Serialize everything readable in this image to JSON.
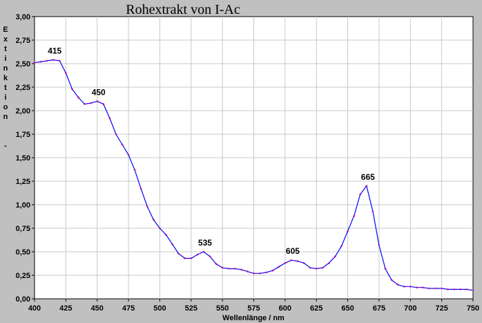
{
  "chart_data": {
    "type": "line",
    "title": "Rohextrakt von I-Ac",
    "xlabel": "Wellenlänge / nm",
    "ylabel": "Extinktion  -",
    "xlim": [
      400,
      750
    ],
    "ylim": [
      0,
      3
    ],
    "x_ticks": [
      "400",
      "425",
      "450",
      "475",
      "500",
      "525",
      "550",
      "575",
      "600",
      "625",
      "650",
      "675",
      "700",
      "725",
      "750"
    ],
    "y_ticks": [
      "0,00",
      "0,25",
      "0,50",
      "0,75",
      "1,00",
      "1,25",
      "1,50",
      "1,75",
      "2,00",
      "2,25",
      "2,50",
      "2,75",
      "3,00"
    ],
    "grid": true,
    "line_color": "#0000ff",
    "marker_color": "#c00080",
    "series": [
      {
        "x": [
          400,
          405,
          410,
          415,
          420,
          425,
          430,
          435,
          440,
          445,
          450,
          455,
          460,
          465,
          470,
          475,
          480,
          485,
          490,
          495,
          500,
          505,
          510,
          515,
          520,
          525,
          530,
          535,
          540,
          545,
          550,
          555,
          560,
          565,
          570,
          575,
          580,
          585,
          590,
          595,
          600,
          605,
          610,
          615,
          620,
          625,
          630,
          635,
          640,
          645,
          650,
          655,
          660,
          665,
          670,
          675,
          680,
          685,
          690,
          695,
          700,
          705,
          710,
          715,
          720,
          725,
          730,
          735,
          740,
          745,
          750
        ],
        "y": [
          2.51,
          2.52,
          2.53,
          2.54,
          2.53,
          2.4,
          2.23,
          2.14,
          2.07,
          2.08,
          2.1,
          2.07,
          1.92,
          1.75,
          1.64,
          1.53,
          1.37,
          1.17,
          0.98,
          0.84,
          0.75,
          0.68,
          0.58,
          0.48,
          0.43,
          0.43,
          0.47,
          0.5,
          0.45,
          0.37,
          0.33,
          0.32,
          0.32,
          0.31,
          0.29,
          0.27,
          0.27,
          0.28,
          0.3,
          0.34,
          0.38,
          0.41,
          0.4,
          0.38,
          0.33,
          0.32,
          0.33,
          0.38,
          0.45,
          0.56,
          0.72,
          0.88,
          1.11,
          1.2,
          0.93,
          0.57,
          0.32,
          0.2,
          0.15,
          0.13,
          0.13,
          0.12,
          0.12,
          0.11,
          0.11,
          0.11,
          0.1,
          0.1,
          0.1,
          0.1,
          0.09
        ]
      }
    ],
    "annotations": [
      {
        "text": "415",
        "x": 415,
        "y": 2.54
      },
      {
        "text": "450",
        "x": 450,
        "y": 2.1
      },
      {
        "text": "535",
        "x": 535,
        "y": 0.5
      },
      {
        "text": "605",
        "x": 605,
        "y": 0.41
      },
      {
        "text": "665",
        "x": 665,
        "y": 1.2
      }
    ]
  }
}
